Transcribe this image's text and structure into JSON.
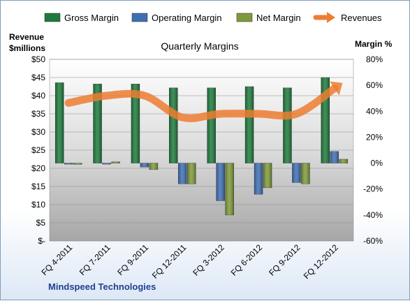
{
  "chart_data": {
    "type": "bar",
    "title": "Quarterly Margins",
    "categories": [
      "FQ 4-2011",
      "FQ 7-2011",
      "FQ 9-2011",
      "FQ 12-2011",
      "FQ 3-2012",
      "FQ 6-2012",
      "FQ 9-2012",
      "FQ 12-2012"
    ],
    "series": [
      {
        "name": "Gross Margin",
        "kind": "bar",
        "axis": "right",
        "color": "#1e7a3c",
        "values": [
          62,
          61,
          61,
          58,
          58,
          59,
          58,
          66
        ]
      },
      {
        "name": "Operating Margin",
        "kind": "bar",
        "axis": "right",
        "color": "#3f6fb3",
        "values": [
          0,
          0,
          -3,
          -16,
          -29,
          -24,
          -15,
          9
        ]
      },
      {
        "name": "Net Margin",
        "kind": "bar",
        "axis": "right",
        "color": "#7f9a3a",
        "values": [
          -1,
          1,
          -5,
          -16,
          -40,
          -19,
          -16,
          3
        ]
      },
      {
        "name": "Revenues",
        "kind": "line",
        "axis": "left",
        "color": "#ed7d31",
        "values": [
          38,
          40,
          40,
          34,
          35,
          35,
          35,
          42
        ]
      }
    ],
    "left_axis": {
      "label_line1": "Revenue",
      "label_line2": "$millions",
      "range": [
        0,
        50
      ],
      "ticks": [
        0,
        5,
        10,
        15,
        20,
        25,
        30,
        35,
        40,
        45,
        50
      ],
      "tick_labels": [
        "$-",
        "$5",
        "$10",
        "$15",
        "$20",
        "$25",
        "$30",
        "$35",
        "$40",
        "$45",
        "$50"
      ]
    },
    "right_axis": {
      "label": "Margin %",
      "range": [
        -60,
        80
      ],
      "ticks": [
        -60,
        -40,
        -20,
        0,
        20,
        40,
        60,
        80
      ],
      "tick_labels": [
        "-60%",
        "-40%",
        "-20%",
        "0%",
        "20%",
        "40%",
        "60%",
        "80%"
      ]
    },
    "grid": true,
    "legend_position": "top"
  },
  "footer": "Mindspeed Technologies",
  "colors": {
    "plot_gradient_top": "#ffffff",
    "plot_gradient_bottom": "#a6a6a6"
  }
}
